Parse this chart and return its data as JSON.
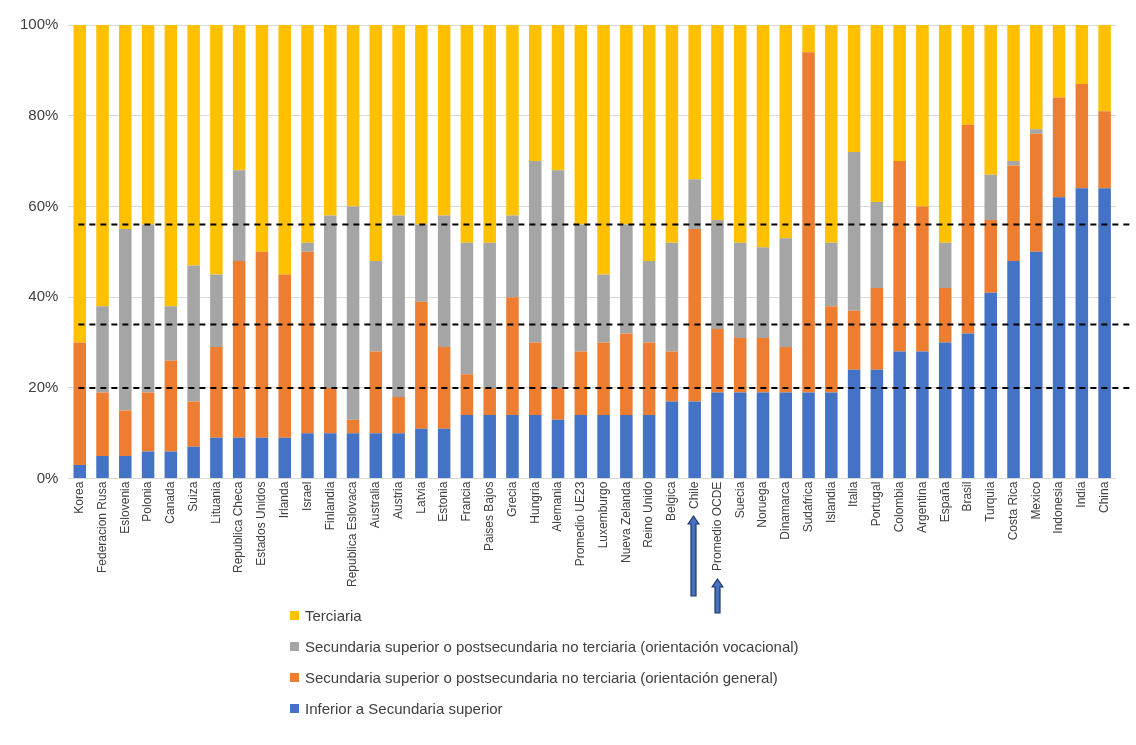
{
  "chart_data": {
    "type": "bar",
    "stacked": true,
    "categories": [
      "Korea",
      "Federacion Rusa",
      "Eslovenia",
      "Polonia",
      "Canada",
      "Suiza",
      "Lituania",
      "Republica Checa",
      "Estados Unidos",
      "Irlanda",
      "Israel",
      "Finlandia",
      "Republica Eslovaca",
      "Australia",
      "Austria",
      "Latvia",
      "Estonia",
      "Francia",
      "Paises Bajos",
      "Grecia",
      "Hungria",
      "Alemania",
      "Promedio UE23",
      "Luxemburgo",
      "Nueva Zelanda",
      "Reino Unido",
      "Belgica",
      "Chile",
      "Promedio OCDE",
      "Suecia",
      "Noruega",
      "Dinamarca",
      "Sudafrica",
      "Islandia",
      "Italia",
      "Portugal",
      "Colombia",
      "Argentina",
      "España",
      "Brasil",
      "Turquia",
      "Costa Rica",
      "Mexico",
      "Indonesia",
      "India",
      "China"
    ],
    "series": [
      {
        "name": "Inferior a Secundaria superior",
        "color": "#4472c4",
        "values": [
          3,
          5,
          5,
          6,
          6,
          7,
          9,
          9,
          9,
          9,
          10,
          10,
          10,
          10,
          10,
          11,
          11,
          14,
          14,
          14,
          14,
          13,
          14,
          14,
          14,
          14,
          17,
          17,
          19,
          19,
          19,
          19,
          19,
          19,
          24,
          24,
          28,
          28,
          30,
          32,
          41,
          48,
          50,
          62,
          64,
          64
        ]
      },
      {
        "name": "Secundaria superior o postsecundaria no terciaria (orientación general)",
        "color": "#ed7d31",
        "values": [
          27,
          14,
          10,
          13,
          20,
          10,
          20,
          39,
          41,
          36,
          40,
          10,
          3,
          18,
          8,
          28,
          18,
          9,
          6,
          26,
          16,
          7,
          14,
          16,
          18,
          16,
          11,
          38,
          14,
          12,
          12,
          10,
          75,
          19,
          13,
          18,
          42,
          32,
          12,
          46,
          16,
          21,
          26,
          22,
          23,
          17
        ]
      },
      {
        "name": "Secundaria superior o postsecundaria no terciaria (orientación vocacional)",
        "color": "#a5a5a5",
        "values": [
          0,
          19,
          40,
          37,
          12,
          30,
          16,
          20,
          0,
          0,
          2,
          38,
          47,
          20,
          40,
          17,
          29,
          29,
          32,
          18,
          40,
          48,
          28,
          15,
          24,
          18,
          24,
          11,
          24,
          21,
          20,
          24,
          0,
          14,
          35,
          19,
          0,
          0,
          10,
          0,
          10,
          1,
          1,
          0,
          0,
          0
        ]
      },
      {
        "name": "Terciaria",
        "color": "#ffc000",
        "values": [
          70,
          62,
          45,
          44,
          62,
          53,
          55,
          32,
          50,
          55,
          48,
          42,
          40,
          52,
          42,
          44,
          42,
          48,
          48,
          42,
          30,
          32,
          44,
          55,
          44,
          52,
          48,
          34,
          43,
          48,
          49,
          47,
          6,
          48,
          28,
          39,
          30,
          40,
          48,
          22,
          33,
          30,
          23,
          16,
          13,
          19
        ]
      }
    ],
    "ylim": [
      0,
      100
    ],
    "yticks": [
      {
        "value": 0,
        "label": "0%"
      },
      {
        "value": 20,
        "label": "20%"
      },
      {
        "value": 40,
        "label": "40%"
      },
      {
        "value": 60,
        "label": "60%"
      },
      {
        "value": 80,
        "label": "80%"
      },
      {
        "value": 100,
        "label": "100%"
      }
    ],
    "grid": "y",
    "legend": "bottom",
    "ref_lines": [
      {
        "axis": "y",
        "value": 56,
        "color": "#000000",
        "line_style": "dashed"
      },
      {
        "axis": "y",
        "value": 34,
        "color": "#000000",
        "line_style": "dashed"
      },
      {
        "axis": "y",
        "value": 20,
        "color": "#000000",
        "line_style": "dashed"
      }
    ]
  }
}
